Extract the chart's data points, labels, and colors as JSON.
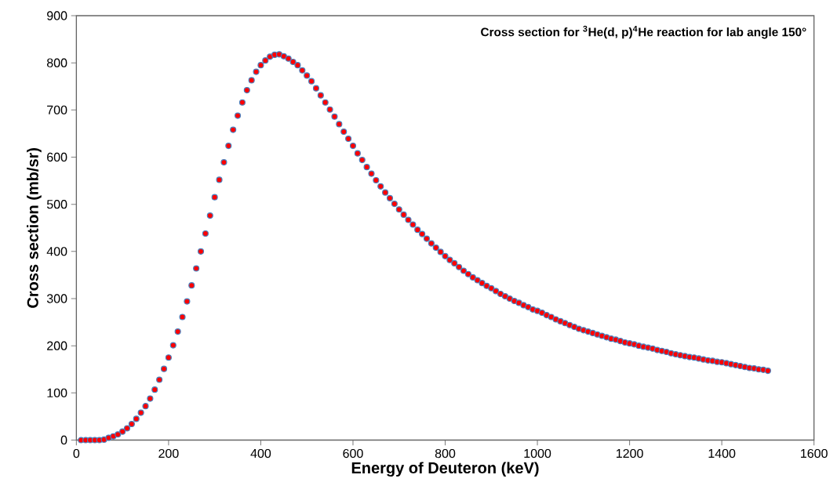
{
  "chart_data": {
    "type": "scatter",
    "title": "Cross section for $^{3}$He(d, p)$^{4}$He reaction for lab angle 150°",
    "xlabel": "Energy of Deuteron (keV)",
    "ylabel": "Cross section (mb/sr)",
    "xlim": [
      0,
      1600
    ],
    "xticks": [
      0,
      200,
      400,
      600,
      800,
      1000,
      1200,
      1400,
      1600
    ],
    "ylim": [
      0,
      900
    ],
    "yticks": [
      0,
      100,
      200,
      300,
      400,
      500,
      600,
      700,
      800,
      900
    ],
    "marker": "circle",
    "color": "#ff0000",
    "x": [
      10,
      20,
      30,
      40,
      50,
      60,
      70,
      80,
      90,
      100,
      110,
      120,
      130,
      140,
      150,
      160,
      170,
      180,
      190,
      200,
      210,
      220,
      230,
      240,
      250,
      260,
      270,
      280,
      290,
      300,
      310,
      320,
      330,
      340,
      350,
      360,
      370,
      380,
      390,
      400,
      410,
      420,
      430,
      440,
      450,
      460,
      470,
      480,
      490,
      500,
      510,
      520,
      530,
      540,
      550,
      560,
      570,
      580,
      590,
      600,
      610,
      620,
      630,
      640,
      650,
      660,
      670,
      680,
      690,
      700,
      710,
      720,
      730,
      740,
      750,
      760,
      770,
      780,
      790,
      800,
      810,
      820,
      830,
      840,
      850,
      860,
      870,
      880,
      890,
      900,
      910,
      920,
      930,
      940,
      950,
      960,
      970,
      980,
      990,
      1000,
      1010,
      1020,
      1030,
      1040,
      1050,
      1060,
      1070,
      1080,
      1090,
      1100,
      1110,
      1120,
      1130,
      1140,
      1150,
      1160,
      1170,
      1180,
      1190,
      1200,
      1210,
      1220,
      1230,
      1240,
      1250,
      1260,
      1270,
      1280,
      1290,
      1300,
      1310,
      1320,
      1330,
      1340,
      1350,
      1360,
      1370,
      1380,
      1390,
      1400,
      1410,
      1420,
      1430,
      1440,
      1450,
      1460,
      1470,
      1480,
      1490,
      1500
    ],
    "values": [
      0,
      0,
      0,
      0,
      0,
      1,
      5,
      8,
      12,
      18,
      25,
      34,
      45,
      58,
      72,
      88,
      107,
      128,
      151,
      175,
      201,
      230,
      261,
      294,
      328,
      364,
      400,
      438,
      476,
      515,
      552,
      589,
      624,
      658,
      688,
      716,
      742,
      763,
      781,
      795,
      805,
      813,
      817,
      818,
      814,
      809,
      802,
      795,
      784,
      773,
      761,
      746,
      731,
      716,
      701,
      686,
      670,
      654,
      639,
      624,
      608,
      594,
      579,
      565,
      551,
      538,
      525,
      513,
      501,
      489,
      478,
      467,
      457,
      446,
      437,
      427,
      417,
      408,
      399,
      390,
      382,
      375,
      367,
      359,
      352,
      345,
      339,
      333,
      327,
      322,
      316,
      310,
      305,
      300,
      295,
      291,
      286,
      282,
      277,
      274,
      270,
      265,
      261,
      256,
      252,
      248,
      244,
      240,
      236,
      233,
      230,
      227,
      224,
      221,
      218,
      215,
      213,
      210,
      207,
      205,
      203,
      200,
      198,
      196,
      194,
      191,
      189,
      187,
      184,
      182,
      180,
      178,
      176,
      175,
      173,
      171,
      169,
      168,
      166,
      165,
      163,
      161,
      159,
      157,
      155,
      153,
      152,
      150,
      149,
      147
    ]
  }
}
